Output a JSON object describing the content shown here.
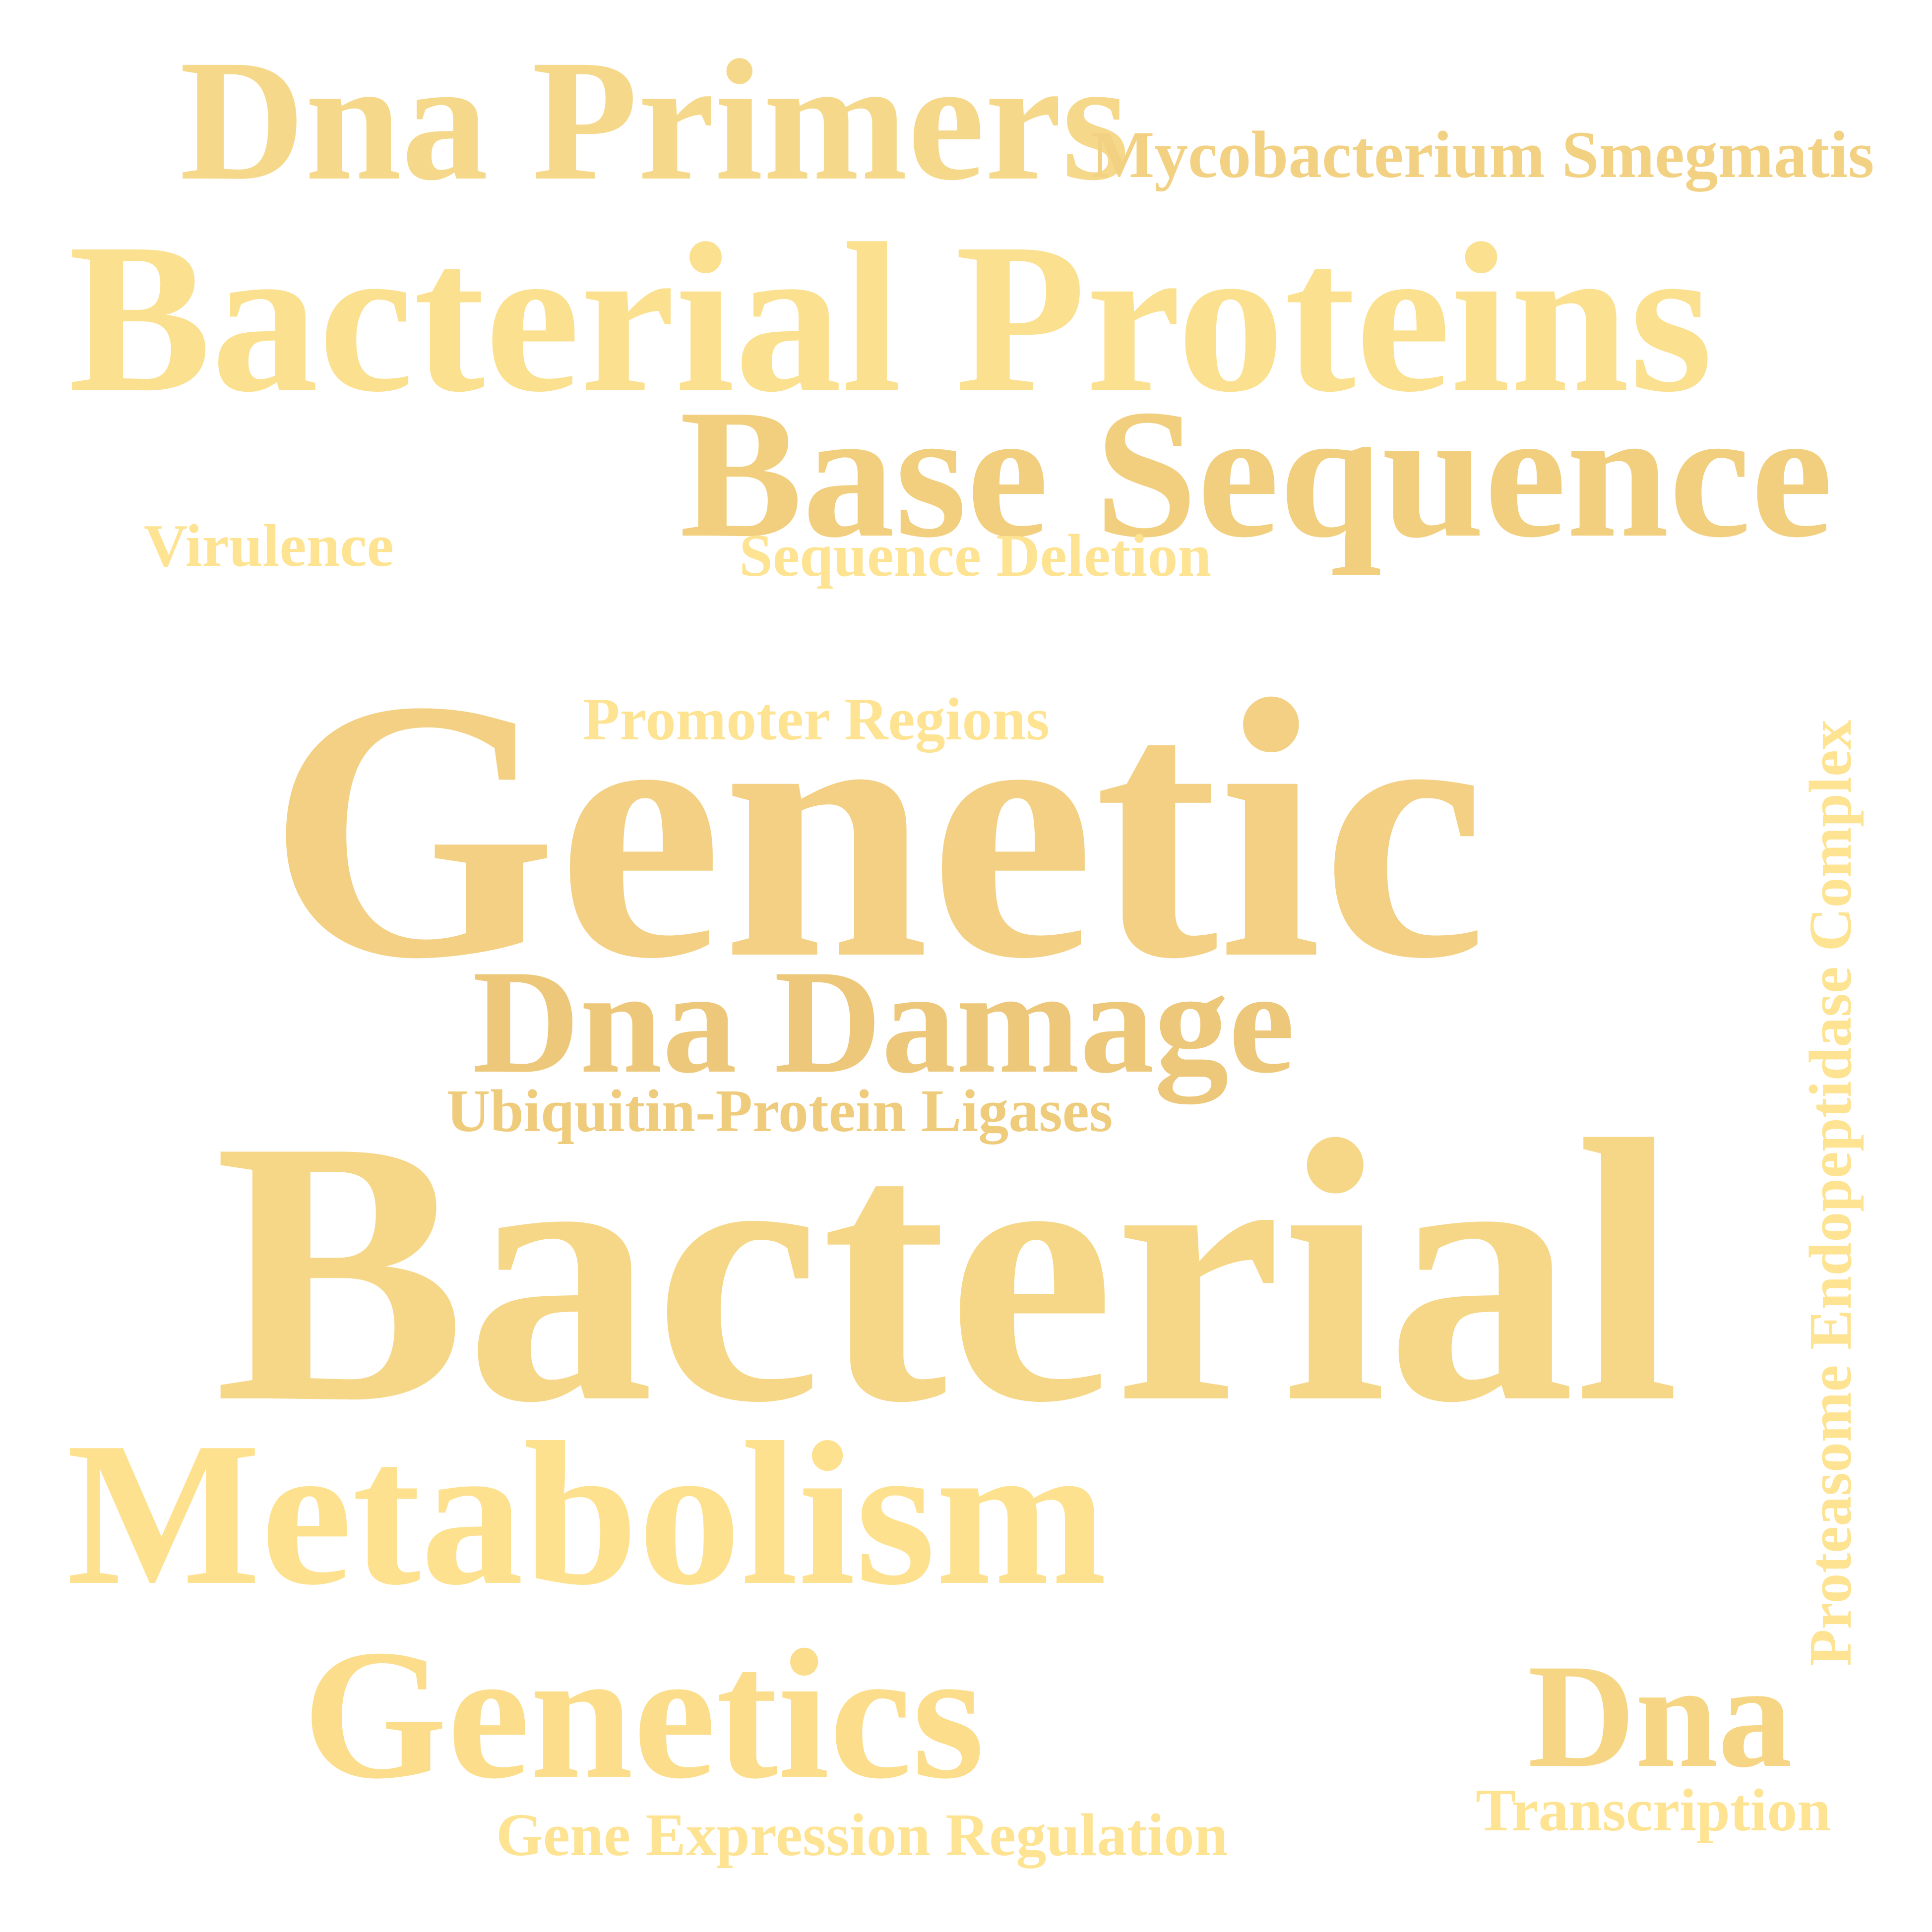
{
  "words": [
    {
      "text": "Dna Primers",
      "color": "#f5d88a"
    },
    {
      "text": "Mycobacterium Smegmatis",
      "color": "#f2d183"
    },
    {
      "text": "Bacterial Proteins",
      "color": "#fbe08f"
    },
    {
      "text": "Base Sequence",
      "color": "#f1cf7f"
    },
    {
      "text": "Virulence",
      "color": "#fde392"
    },
    {
      "text": "Sequence Deletion",
      "color": "#fde392"
    },
    {
      "text": "Promoter Regions",
      "color": "#fde392"
    },
    {
      "text": "Genetic",
      "color": "#f3d083"
    },
    {
      "text": "Dna Damage",
      "color": "#edc87a"
    },
    {
      "text": "Ubiquitin-Protein Ligases",
      "color": "#efcb7c"
    },
    {
      "text": "Bacterial",
      "color": "#f6d788"
    },
    {
      "text": "Metabolism",
      "color": "#fde18f"
    },
    {
      "text": "Proteasome Endopeptidase Complex",
      "color": "#fde392"
    },
    {
      "text": "Genetics",
      "color": "#fbdd8c"
    },
    {
      "text": "Dna",
      "color": "#f6d685"
    },
    {
      "text": "Transcription",
      "color": "#fde392"
    },
    {
      "text": "Gene Expression Regulation",
      "color": "#fde392"
    }
  ]
}
